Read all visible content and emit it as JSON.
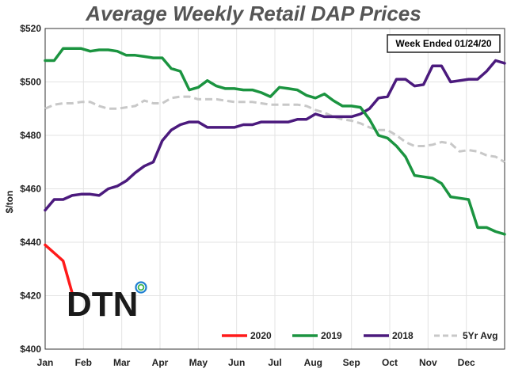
{
  "chart_data": {
    "type": "line",
    "title": "Average Weekly Retail DAP Prices",
    "ylabel": "$/ton",
    "xlabel": "",
    "annotation": "Week Ended 01/24/20",
    "logo": "DTN",
    "ylim": [
      400,
      520
    ],
    "yticks": [
      "$400",
      "$420",
      "$440",
      "$460",
      "$480",
      "$500",
      "$520"
    ],
    "x_ticks": [
      "Jan",
      "Feb",
      "Mar",
      "Apr",
      "May",
      "Jun",
      "Jul",
      "Aug",
      "Sep",
      "Oct",
      "Nov",
      "Dec"
    ],
    "grid": true,
    "legend_position": "bottom",
    "series": [
      {
        "name": "2020",
        "color": "#ff1a1a",
        "dash": "solid",
        "values": [
          [
            0,
            439
          ],
          [
            1,
            436
          ],
          [
            2,
            433
          ],
          [
            3,
            421
          ]
        ]
      },
      {
        "name": "2019",
        "color": "#1b9440",
        "dash": "solid",
        "values": [
          [
            0,
            508
          ],
          [
            1,
            508
          ],
          [
            2,
            512.5
          ],
          [
            3,
            512.5
          ],
          [
            4,
            512.5
          ],
          [
            5,
            511.5
          ],
          [
            6,
            512
          ],
          [
            7,
            512
          ],
          [
            8,
            511.5
          ],
          [
            9,
            510
          ],
          [
            10,
            510
          ],
          [
            11,
            509.5
          ],
          [
            12,
            509
          ],
          [
            13,
            509
          ],
          [
            14,
            505
          ],
          [
            15,
            504
          ],
          [
            16,
            497
          ],
          [
            17,
            498
          ],
          [
            18,
            500.5
          ],
          [
            19,
            498.5
          ],
          [
            20,
            497.5
          ],
          [
            21,
            497.5
          ],
          [
            22,
            497
          ],
          [
            23,
            497
          ],
          [
            24,
            496
          ],
          [
            25,
            494.5
          ],
          [
            26,
            498
          ],
          [
            27,
            497.5
          ],
          [
            28,
            497
          ],
          [
            29,
            495
          ],
          [
            30,
            494
          ],
          [
            31,
            495.5
          ],
          [
            32,
            493
          ],
          [
            33,
            491
          ],
          [
            34,
            491
          ],
          [
            35,
            490.5
          ],
          [
            36,
            486
          ],
          [
            37,
            480
          ],
          [
            38,
            479
          ],
          [
            39,
            476
          ],
          [
            40,
            472
          ],
          [
            41,
            465
          ],
          [
            42,
            464.5
          ],
          [
            43,
            464
          ],
          [
            44,
            462
          ],
          [
            45,
            457
          ],
          [
            46,
            456.5
          ],
          [
            47,
            456
          ],
          [
            48,
            445.5
          ],
          [
            49,
            445.5
          ],
          [
            50,
            444
          ],
          [
            51,
            443
          ]
        ]
      },
      {
        "name": "2018",
        "color": "#4b1a7d",
        "dash": "solid",
        "values": [
          [
            0,
            452
          ],
          [
            1,
            456
          ],
          [
            2,
            456
          ],
          [
            3,
            457.5
          ],
          [
            4,
            458
          ],
          [
            5,
            458
          ],
          [
            6,
            457.5
          ],
          [
            7,
            460
          ],
          [
            8,
            461
          ],
          [
            9,
            463
          ],
          [
            10,
            466
          ],
          [
            11,
            468.5
          ],
          [
            12,
            470
          ],
          [
            13,
            478
          ],
          [
            14,
            482
          ],
          [
            15,
            484
          ],
          [
            16,
            485
          ],
          [
            17,
            485
          ],
          [
            18,
            483
          ],
          [
            19,
            483
          ],
          [
            20,
            483
          ],
          [
            21,
            483
          ],
          [
            22,
            484
          ],
          [
            23,
            484
          ],
          [
            24,
            485
          ],
          [
            25,
            485
          ],
          [
            26,
            485
          ],
          [
            27,
            485
          ],
          [
            28,
            486
          ],
          [
            29,
            486
          ],
          [
            30,
            488
          ],
          [
            31,
            487
          ],
          [
            32,
            487
          ],
          [
            33,
            487
          ],
          [
            34,
            487
          ],
          [
            35,
            488
          ],
          [
            36,
            490
          ],
          [
            37,
            494
          ],
          [
            38,
            494.5
          ],
          [
            39,
            501
          ],
          [
            40,
            501
          ],
          [
            41,
            498.5
          ],
          [
            42,
            499
          ],
          [
            43,
            506
          ],
          [
            44,
            506
          ],
          [
            45,
            500
          ],
          [
            46,
            500.5
          ],
          [
            47,
            501
          ],
          [
            48,
            501
          ],
          [
            49,
            504
          ],
          [
            50,
            508
          ],
          [
            51,
            507
          ]
        ]
      },
      {
        "name": "5Yr Avg",
        "color": "#c8c8c8",
        "dash": "dashed",
        "values": [
          [
            0,
            490
          ],
          [
            1,
            491.5
          ],
          [
            2,
            492
          ],
          [
            3,
            492
          ],
          [
            4,
            492.5
          ],
          [
            5,
            492.5
          ],
          [
            6,
            491
          ],
          [
            7,
            490
          ],
          [
            8,
            490
          ],
          [
            9,
            490.5
          ],
          [
            10,
            491
          ],
          [
            11,
            493
          ],
          [
            12,
            492
          ],
          [
            13,
            492
          ],
          [
            14,
            494
          ],
          [
            15,
            494.5
          ],
          [
            16,
            494.5
          ],
          [
            17,
            493.5
          ],
          [
            18,
            493.5
          ],
          [
            19,
            493.5
          ],
          [
            20,
            493
          ],
          [
            21,
            492.5
          ],
          [
            22,
            492.5
          ],
          [
            23,
            492.5
          ],
          [
            24,
            492
          ],
          [
            25,
            491.5
          ],
          [
            26,
            491.5
          ],
          [
            27,
            491.5
          ],
          [
            28,
            491.5
          ],
          [
            29,
            491
          ],
          [
            30,
            489.5
          ],
          [
            31,
            488.5
          ],
          [
            32,
            487
          ],
          [
            33,
            486
          ],
          [
            34,
            485.5
          ],
          [
            35,
            484.5
          ],
          [
            36,
            483
          ],
          [
            37,
            482
          ],
          [
            38,
            482
          ],
          [
            39,
            480
          ],
          [
            40,
            477.5
          ],
          [
            41,
            476
          ],
          [
            42,
            476
          ],
          [
            43,
            476.5
          ],
          [
            44,
            477.5
          ],
          [
            45,
            477
          ],
          [
            46,
            474
          ],
          [
            47,
            474.5
          ],
          [
            48,
            474
          ],
          [
            49,
            472.5
          ],
          [
            50,
            472
          ],
          [
            51,
            470
          ]
        ]
      }
    ]
  }
}
